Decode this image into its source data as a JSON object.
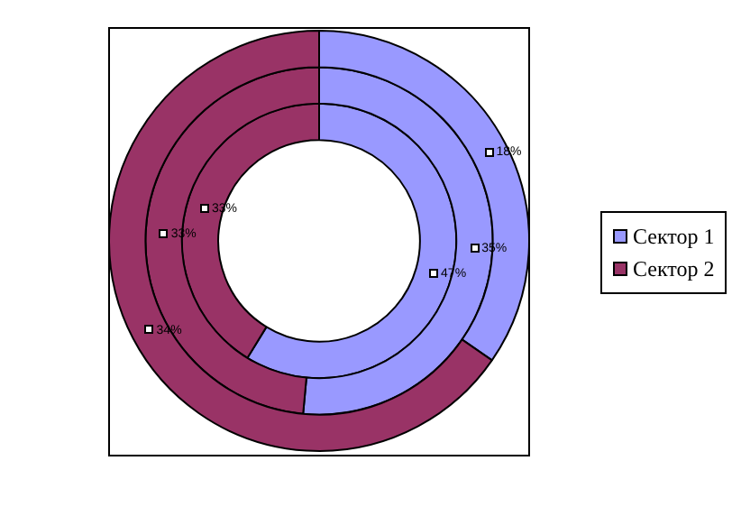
{
  "chart_data": {
    "type": "donut",
    "categories": [
      "Сектор 1",
      "Сектор 2"
    ],
    "colors": [
      "#9999ff",
      "#993366"
    ],
    "legend": "right",
    "series": [
      {
        "values": [
          18,
          34
        ],
        "value_labels": [
          "18%",
          "34%"
        ]
      },
      {
        "values": [
          35,
          33
        ],
        "value_labels": [
          "35%",
          "33%"
        ]
      },
      {
        "values": [
          47,
          33
        ],
        "value_labels": [
          "47%",
          "33%"
        ]
      }
    ]
  }
}
